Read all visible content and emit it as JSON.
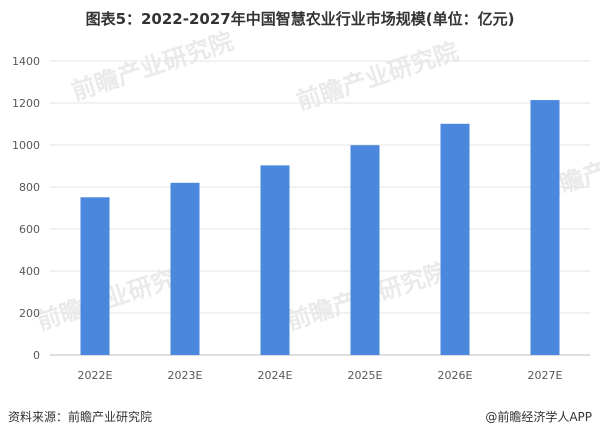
{
  "chart_data": {
    "type": "bar",
    "title": "图表5：2022-2027年中国智慧农业行业市场规模(单位：亿元)",
    "categories": [
      "2022E",
      "2023E",
      "2024E",
      "2025E",
      "2026E",
      "2027E"
    ],
    "values": [
      751,
      820,
      903,
      999,
      1101,
      1214
    ],
    "ylim": [
      0,
      1400
    ],
    "yticks": [
      0,
      200,
      400,
      600,
      800,
      1000,
      1200,
      1400
    ],
    "grid": true,
    "bar_color": "#4a87dd"
  },
  "footer": {
    "source": "资料来源：前瞻产业研究院",
    "brand": "@前瞻经济学人APP"
  },
  "watermark": {
    "text": "前瞻产业研究院"
  }
}
